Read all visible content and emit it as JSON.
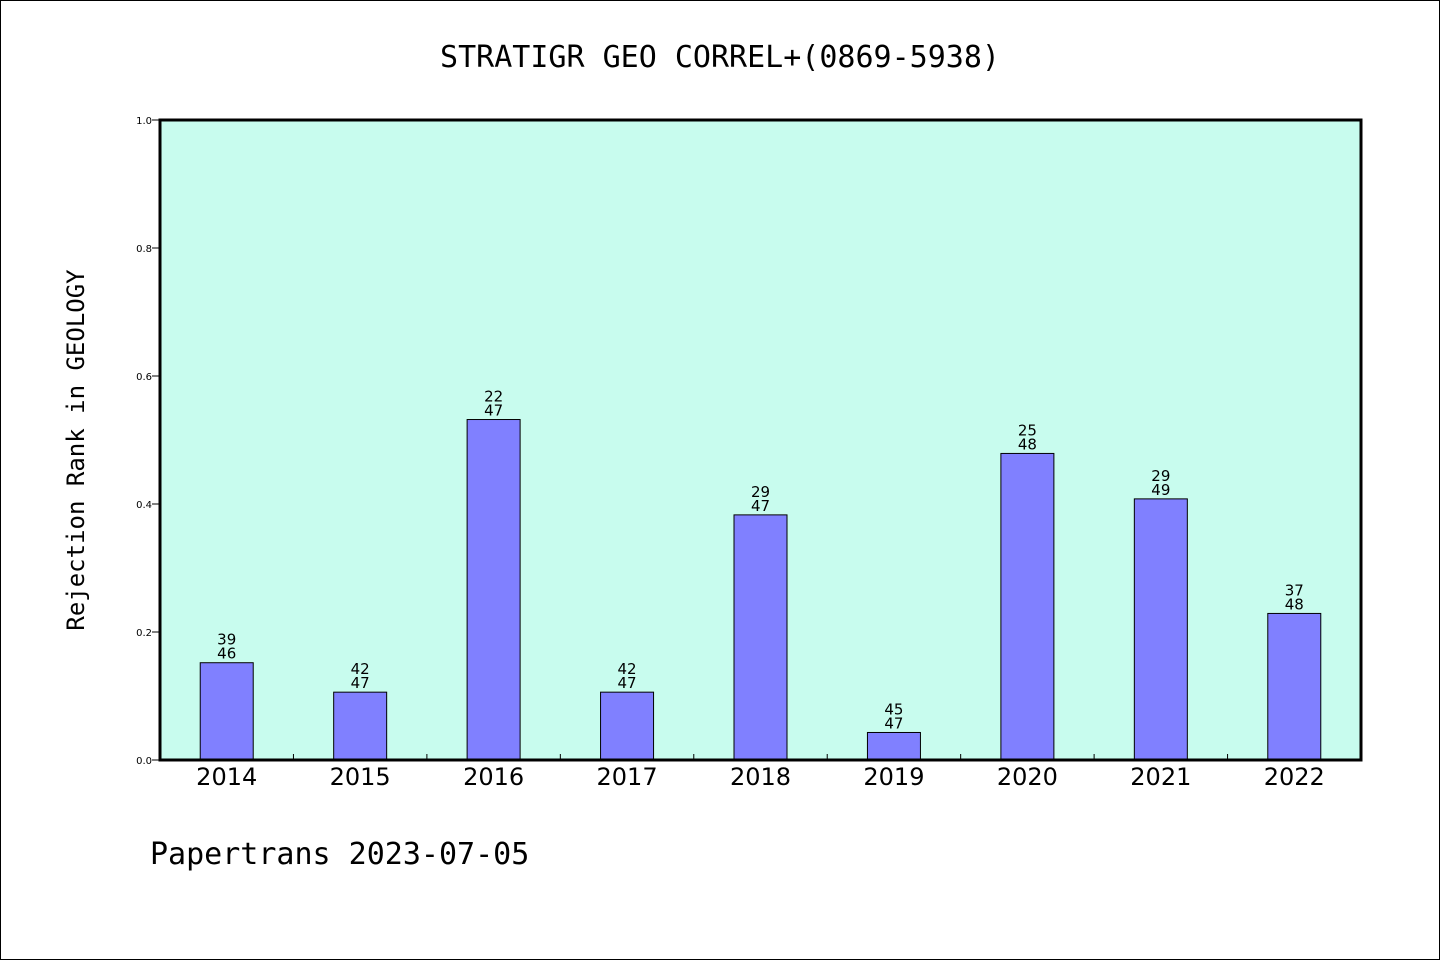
{
  "chart_data": {
    "type": "bar",
    "title": "STRATIGR GEO CORREL+(0869-5938)",
    "ylabel": "Rejection Rank in GEOLOGY",
    "xlabel": "",
    "categories": [
      "2014",
      "2015",
      "2016",
      "2017",
      "2018",
      "2019",
      "2020",
      "2021",
      "2022"
    ],
    "values": [
      0.152,
      0.106,
      0.532,
      0.106,
      0.383,
      0.043,
      0.479,
      0.408,
      0.229
    ],
    "bar_labels": [
      {
        "top": "39",
        "bottom": "46"
      },
      {
        "top": "42",
        "bottom": "47"
      },
      {
        "top": "22",
        "bottom": "47"
      },
      {
        "top": "42",
        "bottom": "47"
      },
      {
        "top": "29",
        "bottom": "47"
      },
      {
        "top": "45",
        "bottom": "47"
      },
      {
        "top": "25",
        "bottom": "48"
      },
      {
        "top": "29",
        "bottom": "49"
      },
      {
        "top": "37",
        "bottom": "48"
      }
    ],
    "ylim": [
      0,
      1.0
    ],
    "yticks": [
      "0.0",
      "0.2",
      "0.4",
      "0.6",
      "0.8",
      "1.0"
    ],
    "grid": false,
    "colors": {
      "plot_background": "#c8fcee",
      "bar_fill": "#8080ff",
      "bar_stroke": "#000000"
    }
  },
  "footer": {
    "text": "Papertrans 2023-07-05"
  }
}
